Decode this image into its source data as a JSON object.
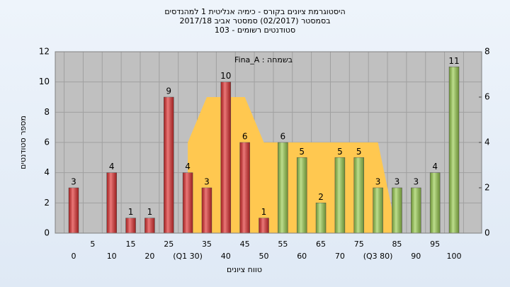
{
  "chart_data": {
    "type": "bar",
    "title": "היסטוגרמת ציונים בקורס - כימיה אנליטית 1 למהנדסים",
    "subtitle": "בסמסטר  (02/2017)  סמסטר אביב 2017/18",
    "subtitle2": "סטודנטים רשומים - 103",
    "annotation": "Fina_A : בשמחה",
    "x_label": "טווח ציונים",
    "y_label": "מספר סטודנטים",
    "categories": [
      "0",
      "5",
      "10",
      "15",
      "20",
      "25",
      "(Q1 30)",
      "35",
      "40",
      "45",
      "50",
      "55",
      "60",
      "65",
      "70",
      "75",
      "(Q3 80)",
      "85",
      "90",
      "95",
      "100"
    ],
    "values": [
      3,
      0,
      4,
      1,
      1,
      9,
      4,
      3,
      10,
      6,
      1,
      6,
      5,
      2,
      5,
      5,
      3,
      3,
      3,
      4,
      11
    ],
    "colors": [
      "#e03030",
      "#e03030",
      "#e03030",
      "#e03030",
      "#e03030",
      "#e03030",
      "#e03030",
      "#e03030",
      "#e03030",
      "#e03030",
      "#e03030",
      "#9acd50",
      "#9acd50",
      "#9acd50",
      "#9acd50",
      "#9acd50",
      "#9acd50",
      "#9acd50",
      "#9acd50",
      "#9acd50",
      "#9acd50"
    ],
    "area": {
      "x": [
        30,
        30,
        35,
        45,
        50,
        80,
        85
      ],
      "values": [
        0,
        4,
        6,
        6,
        4,
        4,
        0
      ],
      "axis": "y2",
      "color": "#ffc850"
    },
    "ylim": [
      0,
      12
    ],
    "yticks": [
      0,
      2,
      4,
      6,
      8,
      10,
      12
    ],
    "y2lim": [
      0,
      8
    ],
    "y2ticks": [
      0,
      2,
      4,
      6,
      8
    ],
    "xlim": [
      0,
      100
    ],
    "grid": true
  }
}
